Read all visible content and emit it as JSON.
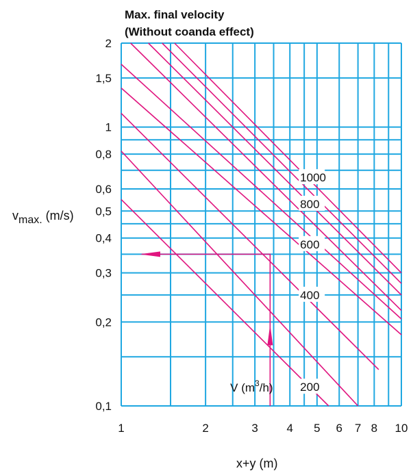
{
  "chart_data": {
    "type": "line",
    "title": [
      "Max. final velocity",
      "(Without coanda effect)"
    ],
    "xlabel": "x+y (m)",
    "ylabel": {
      "main": "v",
      "sub": "max.",
      "unit": " (m/s)"
    },
    "x_scale": "log",
    "y_scale": "log",
    "xlim": [
      1,
      10
    ],
    "ylim": [
      0.1,
      2
    ],
    "x_ticks": [
      {
        "v": 1,
        "label": "1"
      },
      {
        "v": 2,
        "label": "2"
      },
      {
        "v": 3,
        "label": "3"
      },
      {
        "v": 4,
        "label": "4"
      },
      {
        "v": 5,
        "label": "5"
      },
      {
        "v": 6,
        "label": "6"
      },
      {
        "v": 7,
        "label": "7"
      },
      {
        "v": 8,
        "label": "8"
      },
      {
        "v": 10,
        "label": "10"
      }
    ],
    "y_ticks": [
      {
        "v": 0.1,
        "label": "0,1"
      },
      {
        "v": 0.2,
        "label": "0,2"
      },
      {
        "v": 0.3,
        "label": "0,3"
      },
      {
        "v": 0.4,
        "label": "0,4"
      },
      {
        "v": 0.5,
        "label": "0,5"
      },
      {
        "v": 0.6,
        "label": "0,6"
      },
      {
        "v": 0.8,
        "label": "0,8"
      },
      {
        "v": 1,
        "label": "1"
      },
      {
        "v": 1.5,
        "label": "1,5"
      },
      {
        "v": 2,
        "label": "2"
      }
    ],
    "x_grid": [
      1,
      1.5,
      2,
      2.5,
      3,
      3.5,
      4,
      4.5,
      5,
      6,
      7,
      8,
      9,
      10
    ],
    "y_grid": [
      0.1,
      0.15,
      0.2,
      0.25,
      0.3,
      0.35,
      0.4,
      0.45,
      0.5,
      0.6,
      0.7,
      0.8,
      0.9,
      1,
      1.5,
      2
    ],
    "grid": true,
    "series": [
      {
        "x": [
          1.0,
          5.5
        ],
        "y": [
          0.55,
          0.1
        ]
      },
      {
        "x": [
          1.0,
          7.0
        ],
        "y": [
          0.82,
          0.1
        ]
      },
      {
        "x": [
          1.0,
          8.3
        ],
        "y": [
          1.12,
          0.135
        ]
      },
      {
        "x": [
          1.0,
          10.0
        ],
        "y": [
          1.38,
          0.18
        ]
      },
      {
        "x": [
          1.0,
          10.0
        ],
        "y": [
          1.68,
          0.205
        ]
      },
      {
        "x": [
          1.08,
          10.0
        ],
        "y": [
          2.0,
          0.22
        ]
      },
      {
        "x": [
          1.25,
          10.0
        ],
        "y": [
          2.0,
          0.25
        ]
      },
      {
        "x": [
          1.4,
          10.0
        ],
        "y": [
          2.0,
          0.275
        ]
      },
      {
        "x": [
          1.55,
          10.0
        ],
        "y": [
          2.0,
          0.3
        ]
      }
    ],
    "curve_labels": [
      {
        "text": "1000",
        "x": 4.4,
        "y": 0.66
      },
      {
        "text": "800",
        "x": 4.4,
        "y": 0.53
      },
      {
        "text": "600",
        "x": 4.4,
        "y": 0.38
      },
      {
        "text": "400",
        "x": 4.4,
        "y": 0.25
      },
      {
        "text": "200",
        "x": 4.4,
        "y": 0.117
      }
    ],
    "flow_label": {
      "prefix": "V (m",
      "sup": "3",
      "suffix": "/h)",
      "x": 2.45,
      "y": 0.117
    },
    "example_path": {
      "x": 3.4,
      "y_start": 0.1,
      "y_end": 0.35,
      "x_end": 1.0
    },
    "colors": {
      "grid": "#1ea7e1",
      "curves": "#e0157f"
    }
  }
}
